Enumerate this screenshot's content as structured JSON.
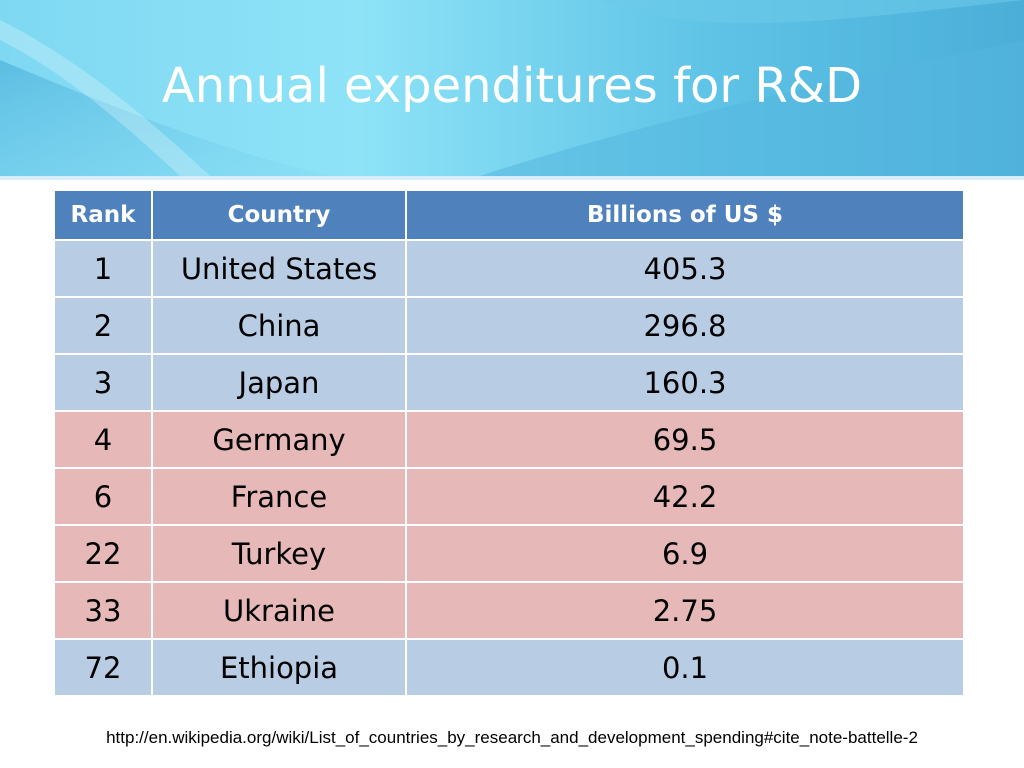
{
  "slide": {
    "title": "Annual expenditures for R&D",
    "source": "http://en.wikipedia.org/wiki/List_of_countries_by_research_and_development_spending#cite_note-battelle-2"
  },
  "table": {
    "headers": [
      "Rank",
      "Country",
      "Billions of US $"
    ],
    "rows": [
      {
        "rank": "1",
        "country": "United States",
        "value": "405.3",
        "highlight": "blue"
      },
      {
        "rank": "2",
        "country": "China",
        "value": "296.8",
        "highlight": "blue"
      },
      {
        "rank": "3",
        "country": "Japan",
        "value": "160.3",
        "highlight": "blue"
      },
      {
        "rank": "4",
        "country": "Germany",
        "value": "69.5",
        "highlight": "red"
      },
      {
        "rank": "6",
        "country": "France",
        "value": "42.2",
        "highlight": "red"
      },
      {
        "rank": "22",
        "country": "Turkey",
        "value": "6.9",
        "highlight": "red"
      },
      {
        "rank": "33",
        "country": "Ukraine",
        "value": "2.75",
        "highlight": "red"
      },
      {
        "rank": "72",
        "country": "Ethiopia",
        "value": "0.1",
        "highlight": "blue"
      }
    ]
  },
  "colors": {
    "header_band_light": "#8fe0f5",
    "header_band_dark": "#4aaed8",
    "table_header": "#4f81bd",
    "row_blue": "#b8cce4",
    "row_red": "#e6b9b8",
    "title_text": "#ffffff"
  }
}
